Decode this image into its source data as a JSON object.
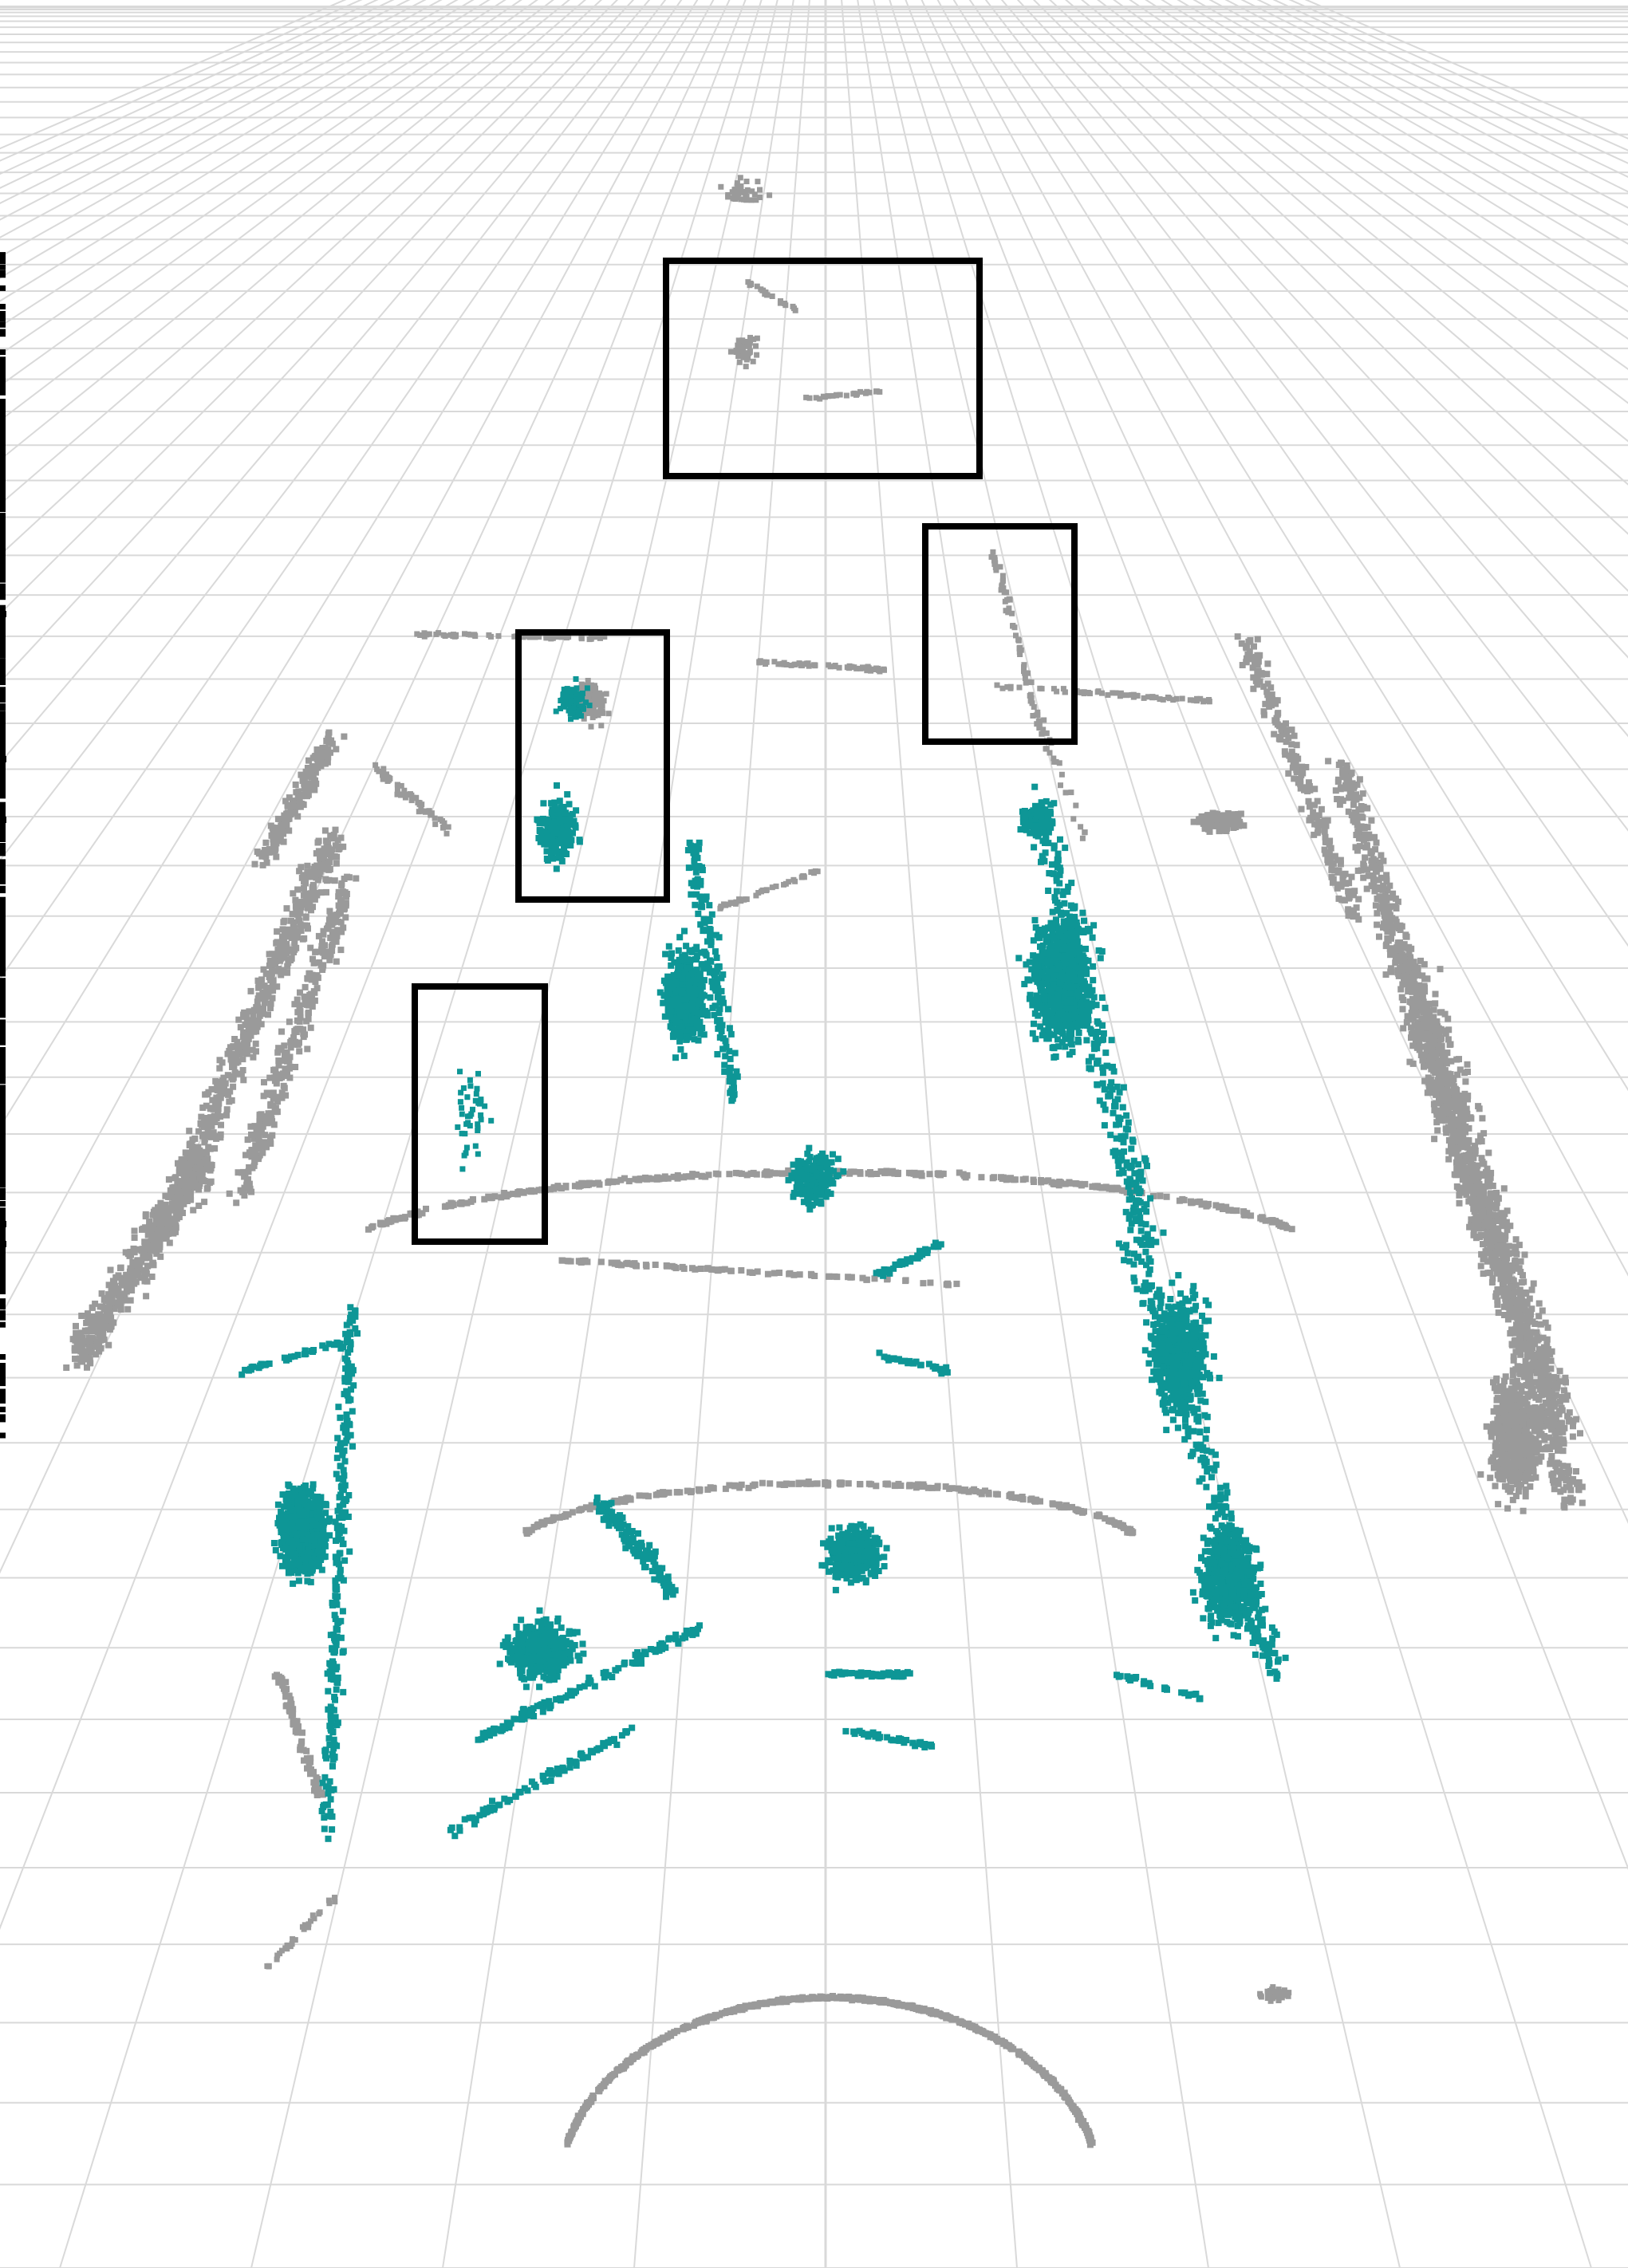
{
  "view": {
    "background": "#ffffff",
    "grid_color": "#d9d9d9",
    "point_colors": {
      "ground": "#9a9a9a",
      "highlighted": "#0e9696"
    },
    "annotation_box_color": "#000000",
    "annotation_box_count": 4
  }
}
